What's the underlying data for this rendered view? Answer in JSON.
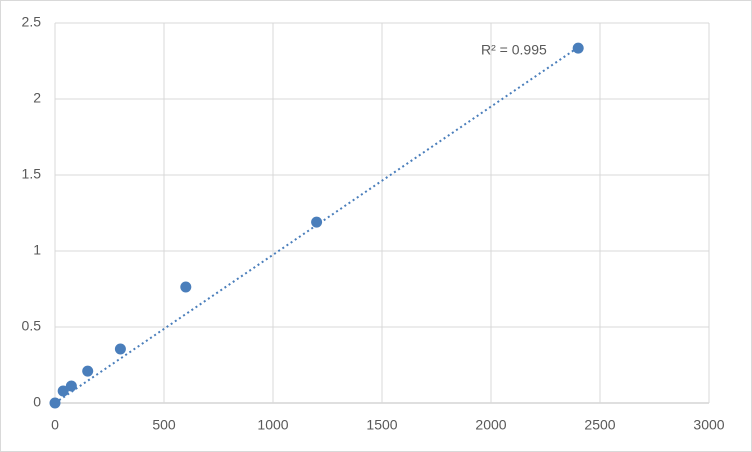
{
  "chart_data": {
    "type": "scatter",
    "series": [
      {
        "color": "#4a7ebb",
        "x": [
          0,
          37.5,
          75,
          150,
          300,
          600,
          1200,
          2400
        ],
        "values": [
          0,
          0.079,
          0.112,
          0.21,
          0.355,
          0.763,
          1.19,
          2.335
        ]
      }
    ],
    "trendline": {
      "x": [
        0,
        2400
      ],
      "values": [
        0,
        2.34
      ],
      "color": "#4a7ebb"
    },
    "annotation": "R² = 0.995",
    "xlim": [
      0,
      3000
    ],
    "xticks": [
      0,
      500,
      1000,
      1500,
      2000,
      2500,
      3000
    ],
    "ylim": [
      0,
      2.5
    ],
    "yticks": [
      0,
      0.5,
      1,
      1.5,
      2,
      2.5
    ],
    "grid": true
  }
}
